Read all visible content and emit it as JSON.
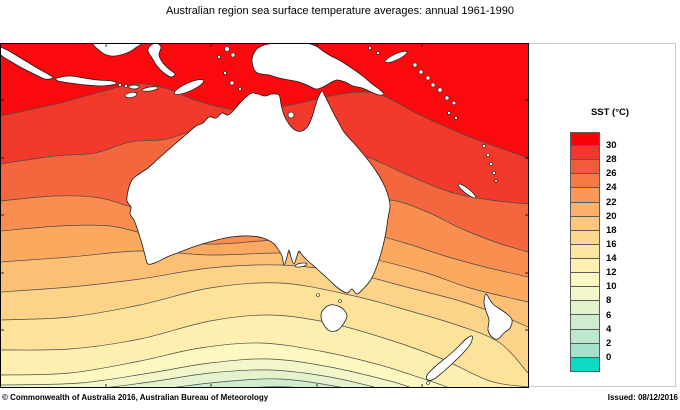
{
  "title": "Australian region sea surface temperature averages: annual 1961-1990",
  "footer": {
    "copyright": "© Commonwealth of Australia 2016, Australian Bureau of Meteorology",
    "issued": "Issued: 08/12/2016"
  },
  "legend": {
    "title": "SST (°C)",
    "tick_labels": [
      "30",
      "28",
      "26",
      "24",
      "22",
      "20",
      "18",
      "16",
      "14",
      "12",
      "10",
      "8",
      "6",
      "4",
      "2",
      "0"
    ],
    "box_colors": [
      "#FB0207",
      "#F2372E",
      "#F25B38",
      "#F67946",
      "#F99857",
      "#FBB169",
      "#FCC77D",
      "#FBD88E",
      "#FCE69F",
      "#FDF0B2",
      "#FCF8C2",
      "#F2F6C8",
      "#E2F2CC",
      "#CFEDCE",
      "#BCE8D0",
      "#A5E2CE",
      "#0ED9C2"
    ]
  },
  "map": {
    "base_color": "#FA0A0D",
    "land_color": "#FFFFFF",
    "coast_color": "#1a1a1a",
    "contour_color": "#4a4a4a",
    "border_color": "#000000",
    "isotherm_levels": [
      28,
      26,
      24,
      22,
      20,
      18,
      16,
      14,
      12,
      10,
      8,
      6,
      4
    ],
    "band_colors": [
      "#F23A2C",
      "#F4663D",
      "#F98E50",
      "#FBA95F",
      "#FCC075",
      "#FCD389",
      "#FDE29A",
      "#FDEFAF",
      "#FDF7C0",
      "#F3F6C8",
      "#E4F3CD",
      "#D0EDCF",
      "#BEE8D1"
    ]
  },
  "chart_data": {
    "type": "heatmap",
    "title": "Australian region sea surface temperature averages: annual 1961-1990",
    "units": "°C",
    "legend_label": "SST (°C)",
    "scale_values": [
      30,
      28,
      26,
      24,
      22,
      20,
      18,
      16,
      14,
      12,
      10,
      8,
      6,
      4,
      2,
      0
    ],
    "description": "Filled contour map of annual mean sea surface temperature (1961-1990 climatology). Warmest water (~28-30°C, bright red) spans the tropical seas around Indonesia, the Arafura Sea, Papua New Guinea and the Coral Sea; temperature decreases southward in ~2°C bands through oranges and yellows to pale greens (~6-10°C) in the Southern Ocean south of Australia; isotherms bend southward in the Tasman Sea toward New Zealand. Land (Australia, Indonesia, PNG, New Zealand) is shown white."
  }
}
